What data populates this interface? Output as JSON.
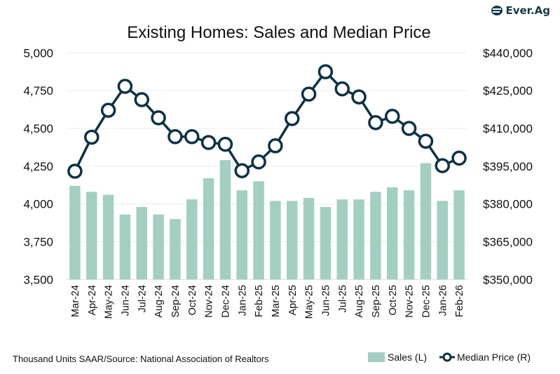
{
  "logo": {
    "text": "Ever.Ag",
    "icon": "ever-ag-logo-icon"
  },
  "chart_data": {
    "type": "bar+line",
    "title": "Existing Homes: Sales and Median Price",
    "footnote": "Thousand Units SAAR/Source: National Association of Realtors",
    "categories": [
      "Mar-24",
      "Apr-24",
      "May-24",
      "Jun-24",
      "Jul-24",
      "Aug-24",
      "Sep-24",
      "Oct-24",
      "Nov-24",
      "Dec-24",
      "Jan-25",
      "Feb-25",
      "Mar-25",
      "Apr-25",
      "May-25",
      "Jun-25",
      "Jul-25",
      "Aug-25",
      "Sep-25",
      "Oct-25",
      "Nov-25",
      "Dec-25",
      "Jan-26",
      "Feb-26"
    ],
    "series": [
      {
        "name": "Sales (L)",
        "type": "bar",
        "axis": "left",
        "color": "#a3cfc3",
        "values": [
          4120,
          4080,
          4060,
          3930,
          3980,
          3930,
          3900,
          4030,
          4170,
          4290,
          4090,
          4150,
          4020,
          4020,
          4040,
          3980,
          4030,
          4030,
          4080,
          4110,
          4090,
          4270,
          4020,
          4090
        ]
      },
      {
        "name": "Median Price (R)",
        "type": "line",
        "axis": "right",
        "color": "#0c3245",
        "values": [
          393000,
          406500,
          417200,
          426700,
          421400,
          414200,
          406700,
          406700,
          404400,
          403700,
          393200,
          396700,
          403100,
          413900,
          423600,
          432500,
          425700,
          422500,
          412300,
          414800,
          410000,
          404900,
          395200,
          398200
        ]
      }
    ],
    "y_left": {
      "range": [
        3500,
        5000
      ],
      "ticks": [
        "3,500",
        "3,750",
        "4,000",
        "4,250",
        "4,500",
        "4,750",
        "5,000"
      ]
    },
    "y_right": {
      "range": [
        350000,
        440000
      ],
      "ticks": [
        "$350,000",
        "$365,000",
        "$380,000",
        "$395,000",
        "$410,000",
        "$425,000",
        "$440,000"
      ]
    },
    "grid": true,
    "legend": "bottom-right"
  }
}
